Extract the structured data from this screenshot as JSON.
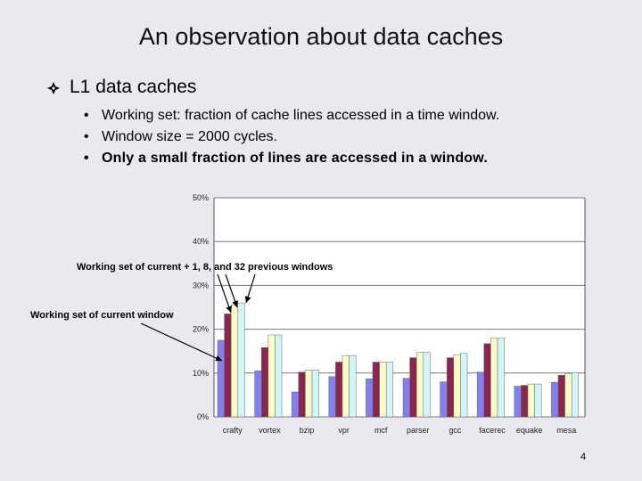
{
  "slide": {
    "title": "An observation about data caches",
    "section": "L1 data caches",
    "bullets": [
      "Working set: fraction of cache lines accessed in a time window.",
      "Window size = 2000 cycles.",
      "Only a small fraction of lines are accessed in a window."
    ],
    "page_number": "4"
  },
  "annotations": {
    "multi_window": "Working set of current + 1, 8, and 32 previous windows",
    "current_window": "Working set of current window"
  },
  "colors": {
    "series": [
      "#8080f0",
      "#8a2552",
      "#fbfbc8",
      "#d2f6f8"
    ]
  },
  "chart_data": {
    "type": "bar",
    "categories": [
      "crafty",
      "vortex",
      "bzip",
      "vpr",
      "mcf",
      "parser",
      "gcc",
      "facerec",
      "equake",
      "mesa"
    ],
    "series": [
      {
        "values": [
          17.5,
          10.5,
          5.7,
          9.2,
          8.7,
          8.8,
          8.0,
          10.2,
          7.0,
          7.9
        ]
      },
      {
        "values": [
          23.5,
          15.8,
          10.2,
          12.5,
          12.5,
          13.5,
          13.5,
          16.7,
          7.2,
          9.5
        ]
      },
      {
        "values": [
          25.5,
          18.7,
          10.7,
          14.0,
          12.5,
          14.7,
          14.2,
          18.0,
          7.5,
          9.9
        ]
      },
      {
        "values": [
          26.0,
          18.7,
          10.7,
          14.0,
          12.5,
          14.7,
          14.5,
          18.0,
          7.5,
          10.1
        ]
      }
    ],
    "ylim": [
      0,
      50
    ],
    "ytick_labels": [
      "0%",
      "10%",
      "20%",
      "30%",
      "40%",
      "50%"
    ],
    "ytick_values": [
      0,
      10,
      20,
      30,
      40,
      50
    ],
    "grid": "horizontal"
  }
}
